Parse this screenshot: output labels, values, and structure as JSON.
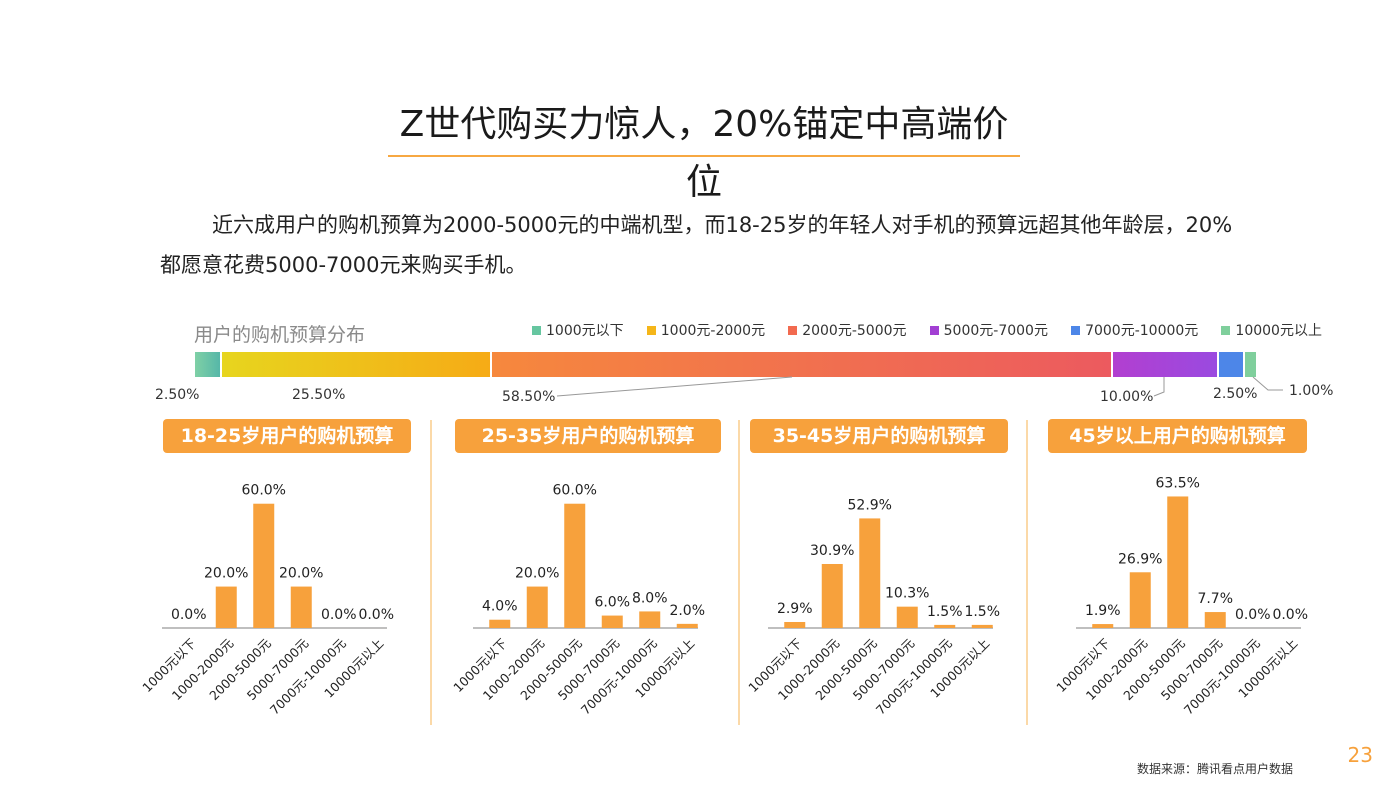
{
  "page": {
    "title": "Z世代购买力惊人，20%锚定中高端价位",
    "intro": "近六成用户的购机预算为2000-5000元的中端机型，而18-25岁的年轻人对手机的预算远超其他年龄层，20%都愿意花费5000-7000元来购买手机。",
    "page_number": "23",
    "source": "数据来源：腾讯看点用户数据"
  },
  "chart_data": [
    {
      "type": "bar",
      "subtype": "stacked-100",
      "title": "用户的购机预算分布",
      "categories": [
        "1000元以下",
        "1000元-2000元",
        "2000元-5000元",
        "5000元-7000元",
        "7000元-10000元",
        "10000元以上"
      ],
      "values": [
        2.5,
        25.5,
        58.5,
        10.0,
        2.5,
        1.0
      ],
      "labels": [
        "2.50%",
        "25.50%",
        "58.50%",
        "10.00%",
        "2.50%",
        "1.00%"
      ],
      "colors": [
        "#66c6a0",
        "#f5b619",
        "#f26a4f",
        "#a23fd3",
        "#4d86e8",
        "#7fcf9c"
      ],
      "legend_position": "top-right"
    },
    {
      "type": "bar",
      "title": "18-25岁用户的购机预算",
      "categories": [
        "1000元以下",
        "1000-2000元",
        "2000-5000元",
        "5000-7000元",
        "7000元-10000元",
        "10000元以上"
      ],
      "values": [
        0.0,
        20.0,
        60.0,
        20.0,
        0.0,
        0.0
      ],
      "labels": [
        "0.0%",
        "20.0%",
        "60.0%",
        "20.0%",
        "0.0%",
        "0.0%"
      ],
      "ylim": [
        0,
        70
      ],
      "color": "#f7a13c",
      "grid": false
    },
    {
      "type": "bar",
      "title": "25-35岁用户的购机预算",
      "categories": [
        "1000元以下",
        "1000-2000元",
        "2000-5000元",
        "5000-7000元",
        "7000元-10000元",
        "10000元以上"
      ],
      "values": [
        4.0,
        20.0,
        60.0,
        6.0,
        8.0,
        2.0
      ],
      "labels": [
        "4.0%",
        "20.0%",
        "60.0%",
        "6.0%",
        "8.0%",
        "2.0%"
      ],
      "ylim": [
        0,
        70
      ],
      "color": "#f7a13c",
      "grid": false
    },
    {
      "type": "bar",
      "title": "35-45岁用户的购机预算",
      "categories": [
        "1000元以下",
        "1000-2000元",
        "2000-5000元",
        "5000-7000元",
        "7000元-10000元",
        "10000元以上"
      ],
      "values": [
        2.9,
        30.9,
        52.9,
        10.3,
        1.5,
        1.5
      ],
      "labels": [
        "2.9%",
        "30.9%",
        "52.9%",
        "10.3%",
        "1.5%",
        "1.5%"
      ],
      "ylim": [
        0,
        70
      ],
      "color": "#f7a13c",
      "grid": false
    },
    {
      "type": "bar",
      "title": "45岁以上用户的购机预算",
      "categories": [
        "1000元以下",
        "1000-2000元",
        "2000-5000元",
        "5000-7000元",
        "7000元-10000元",
        "10000元以上"
      ],
      "values": [
        1.9,
        26.9,
        63.5,
        7.7,
        0.0,
        0.0
      ],
      "labels": [
        "1.9%",
        "26.9%",
        "63.5%",
        "7.7%",
        "0.0%",
        "0.0%"
      ],
      "ylim": [
        0,
        70
      ],
      "color": "#f7a13c",
      "grid": false
    }
  ]
}
